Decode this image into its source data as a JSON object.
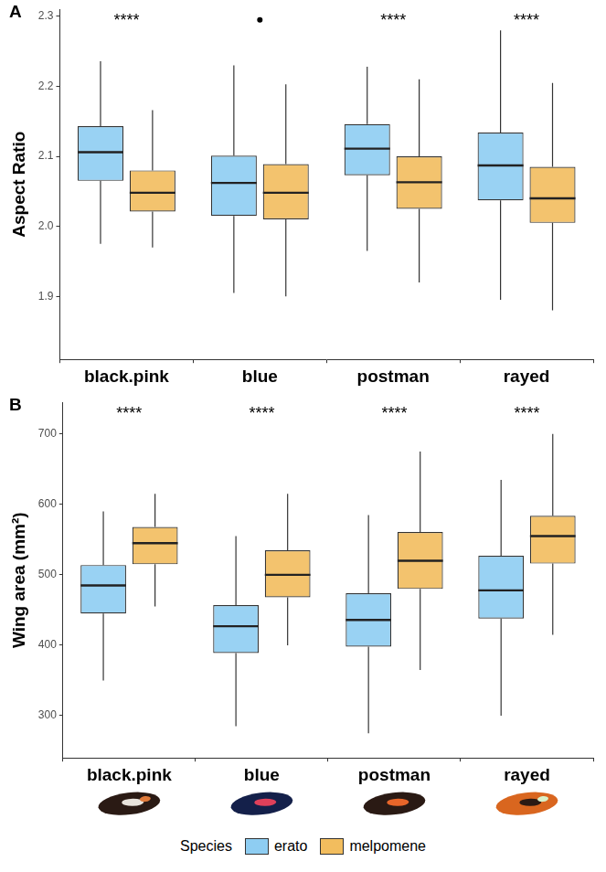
{
  "chart_data": [
    {
      "type": "boxplot",
      "panel_label": "A",
      "y_label": "Aspect Ratio",
      "categories": [
        "black.pink",
        "blue",
        "postman",
        "rayed"
      ],
      "ylim": [
        1.81,
        2.31
      ],
      "yticks": [
        1.9,
        {
          "value": 2,
          "label": "2.0"
        },
        2.1,
        2.2,
        2.3
      ],
      "grid": false,
      "annotations": [
        "****",
        null,
        "****",
        "****"
      ],
      "points": [
        {
          "category": "blue",
          "value": 2.295,
          "color": "#000000"
        }
      ],
      "series": [
        {
          "name": "erato",
          "color": "#8ecdf2",
          "values": [
            {
              "min": 1.975,
              "q1": 2.065,
              "median": 2.106,
              "q3": 2.143,
              "max": 2.236
            },
            {
              "min": 1.905,
              "q1": 2.015,
              "median": 2.062,
              "q3": 2.101,
              "max": 2.23
            },
            {
              "min": 1.965,
              "q1": 2.073,
              "median": 2.111,
              "q3": 2.146,
              "max": 2.228
            },
            {
              "min": 1.895,
              "q1": 2.037,
              "median": 2.087,
              "q3": 2.134,
              "max": 2.28
            }
          ]
        },
        {
          "name": "melpomene",
          "color": "#f2bd5e",
          "values": [
            {
              "min": 1.97,
              "q1": 2.021,
              "median": 2.048,
              "q3": 2.08,
              "max": 2.166
            },
            {
              "min": 1.9,
              "q1": 2.01,
              "median": 2.048,
              "q3": 2.089,
              "max": 2.203
            },
            {
              "min": 1.92,
              "q1": 2.025,
              "median": 2.063,
              "q3": 2.1,
              "max": 2.21
            },
            {
              "min": 1.88,
              "q1": 2.005,
              "median": 2.04,
              "q3": 2.085,
              "max": 2.205
            }
          ]
        }
      ]
    },
    {
      "type": "boxplot",
      "panel_label": "B",
      "y_label": "Wing area (mm²)",
      "categories": [
        "black.pink",
        "blue",
        "postman",
        "rayed"
      ],
      "ylim": [
        240,
        745
      ],
      "yticks": [
        300,
        400,
        500,
        600,
        700
      ],
      "grid": false,
      "annotations": [
        "****",
        "****",
        "****",
        "****"
      ],
      "legend": "bottom",
      "legend_title": "Species",
      "series": [
        {
          "name": "erato",
          "color": "#8ecdf2",
          "values": [
            {
              "min": 350,
              "q1": 445,
              "median": 485,
              "q3": 514,
              "max": 590
            },
            {
              "min": 285,
              "q1": 389,
              "median": 427,
              "q3": 457,
              "max": 555
            },
            {
              "min": 275,
              "q1": 398,
              "median": 436,
              "q3": 474,
              "max": 585
            },
            {
              "min": 300,
              "q1": 438,
              "median": 478,
              "q3": 527,
              "max": 635
            }
          ]
        },
        {
          "name": "melpomene",
          "color": "#f2bd5e",
          "values": [
            {
              "min": 455,
              "q1": 515,
              "median": 545,
              "q3": 568,
              "max": 615
            },
            {
              "min": 400,
              "q1": 468,
              "median": 500,
              "q3": 535,
              "max": 615
            },
            {
              "min": 365,
              "q1": 480,
              "median": 520,
              "q3": 561,
              "max": 675
            },
            {
              "min": 415,
              "q1": 516,
              "median": 555,
              "q3": 584,
              "max": 700
            }
          ]
        }
      ]
    }
  ]
}
